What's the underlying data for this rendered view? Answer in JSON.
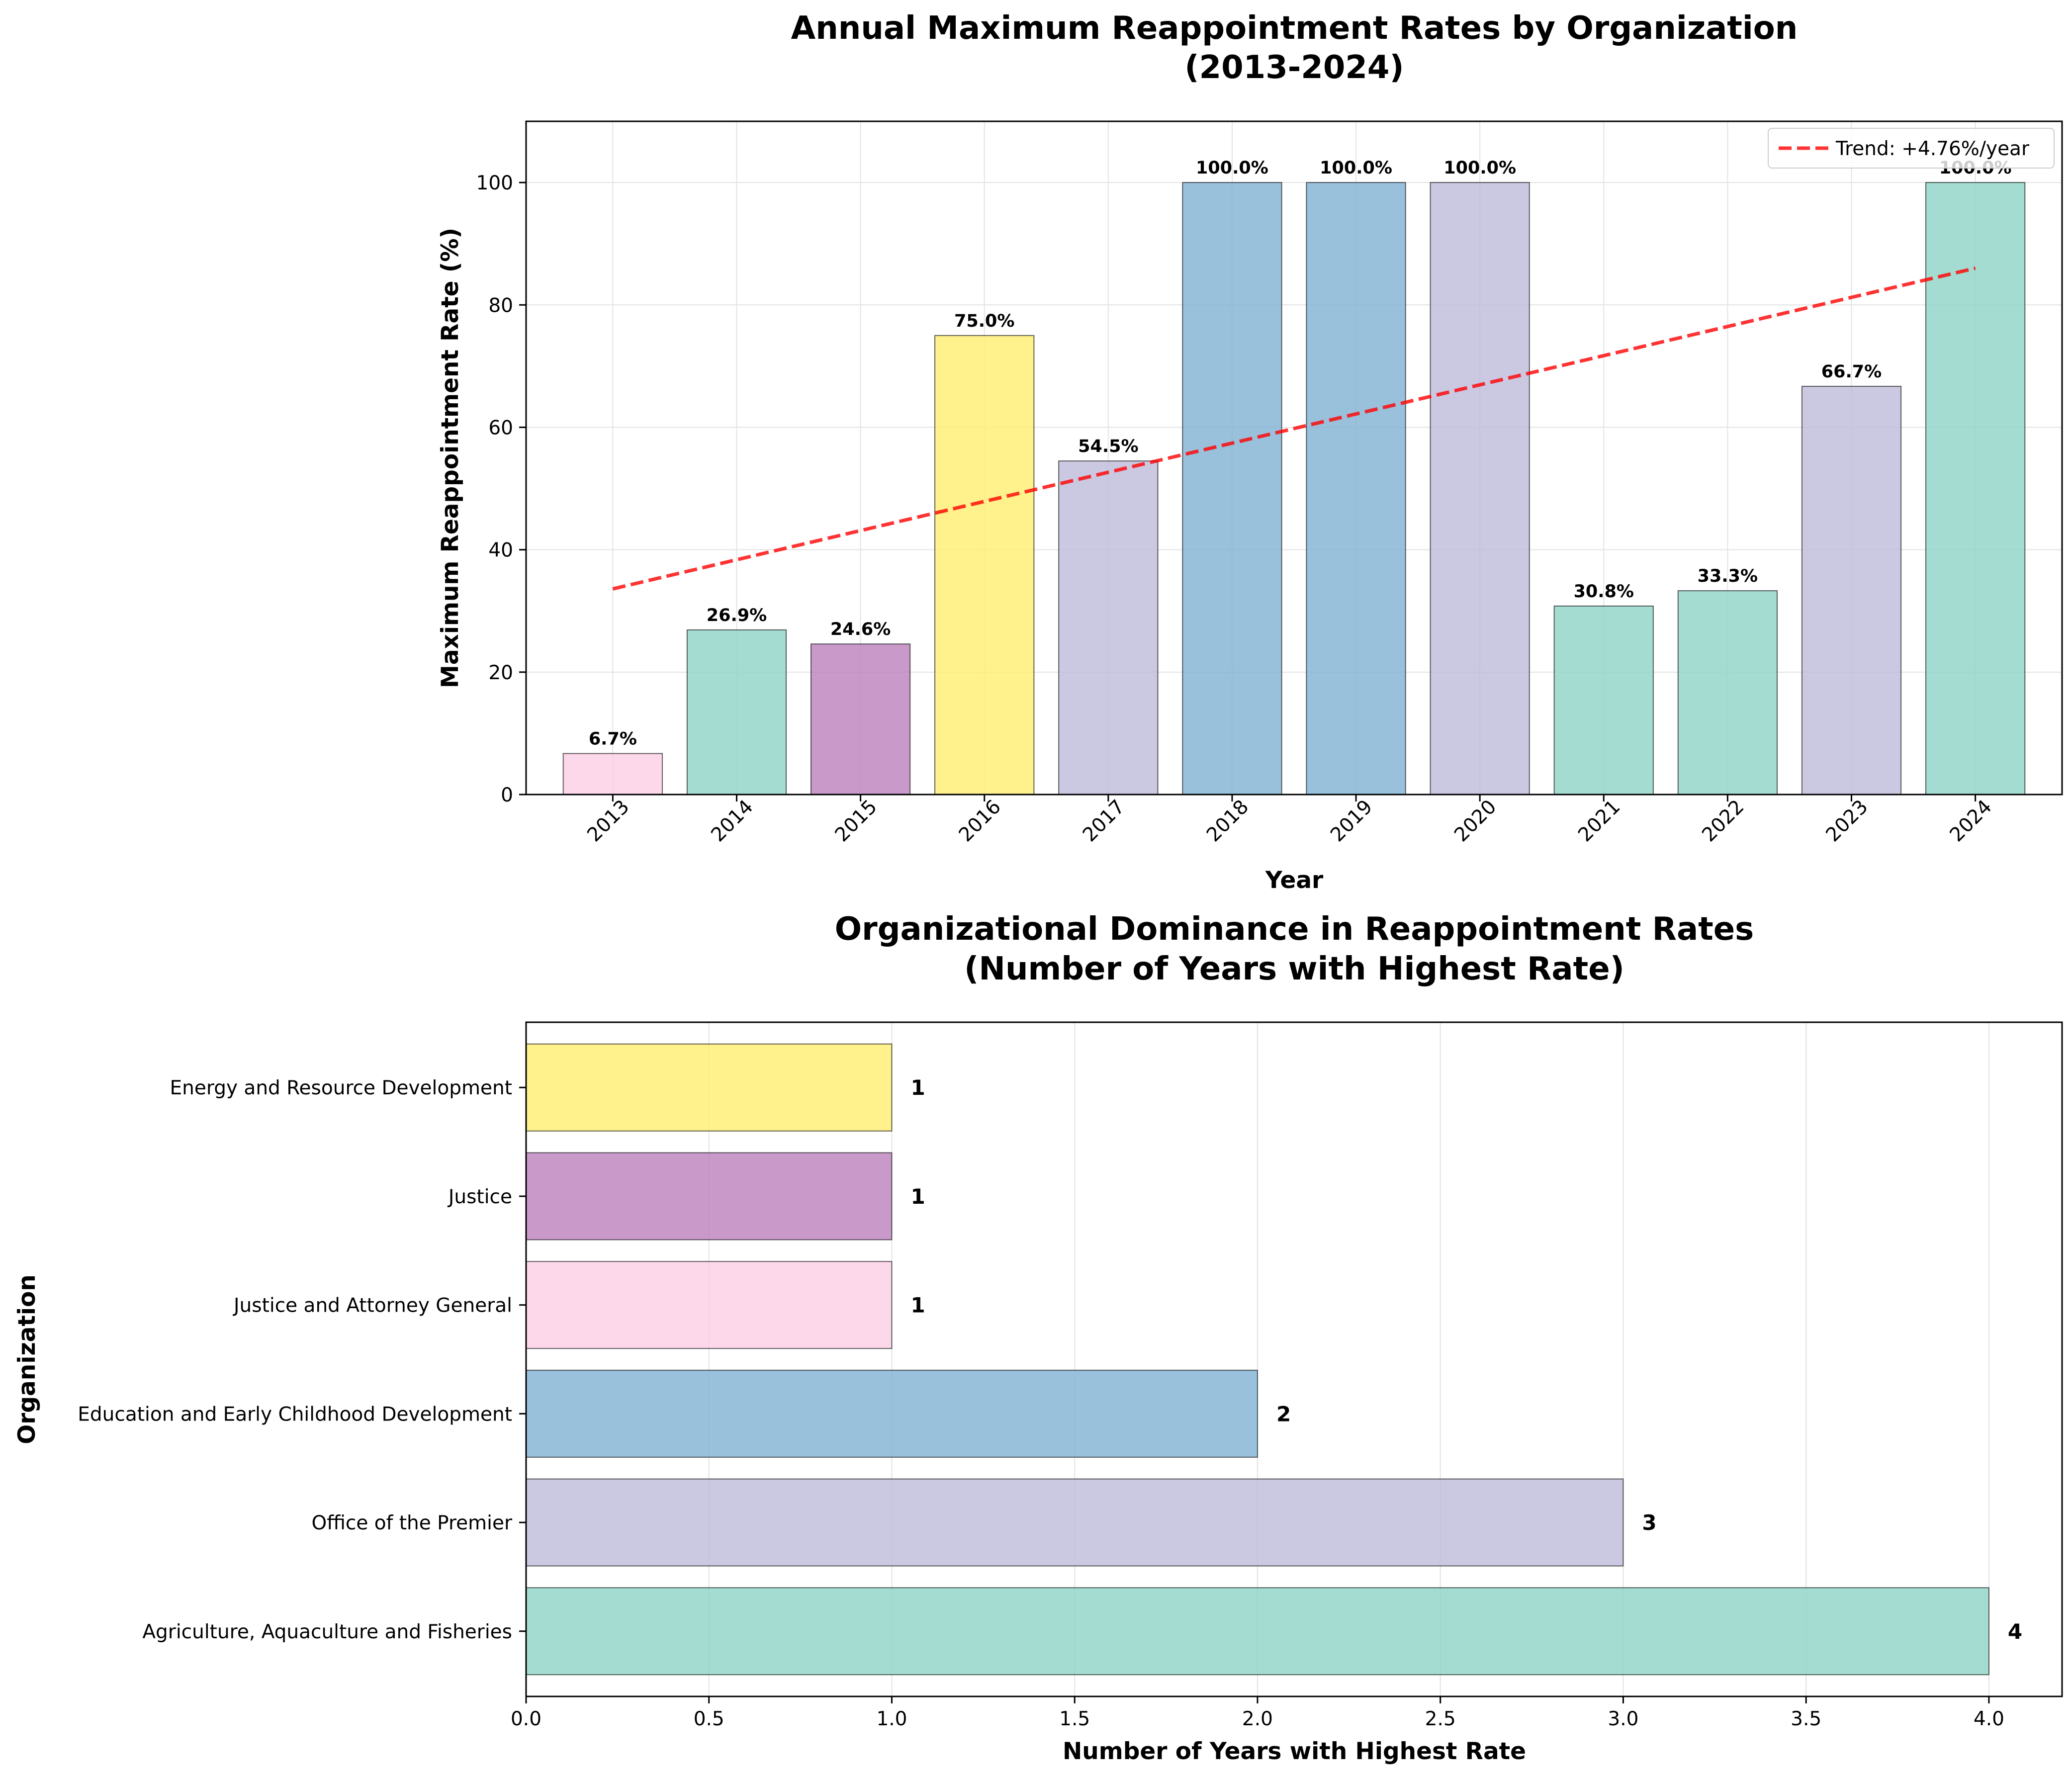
{
  "chart_data": [
    {
      "type": "bar",
      "title_lines": [
        "Annual Maximum Reappointment Rates by Organization",
        "(2013-2024)"
      ],
      "xlabel": "Year",
      "ylabel": "Maximum Reappointment Rate (%)",
      "ylim": [
        0,
        110
      ],
      "yticks": [
        0,
        20,
        40,
        60,
        80,
        100
      ],
      "grid": true,
      "legend_position": "top-right",
      "categories": [
        "2013",
        "2014",
        "2015",
        "2016",
        "2017",
        "2018",
        "2019",
        "2020",
        "2021",
        "2022",
        "2023",
        "2024"
      ],
      "values": [
        6.7,
        26.9,
        24.6,
        75.0,
        54.5,
        100.0,
        100.0,
        100.0,
        30.8,
        33.3,
        66.7,
        100.0
      ],
      "value_labels": [
        "6.7%",
        "26.9%",
        "24.6%",
        "75.0%",
        "54.5%",
        "100.0%",
        "100.0%",
        "100.0%",
        "30.8%",
        "33.3%",
        "66.7%",
        "100.0%"
      ],
      "colors": [
        "#fccde5",
        "#8dd3c7",
        "#bc80bd",
        "#ffed6f",
        "#bebada",
        "#80b1d3",
        "#80b1d3",
        "#bebada",
        "#8dd3c7",
        "#8dd3c7",
        "#bebada",
        "#8dd3c7"
      ],
      "trend": {
        "label": "Trend: +4.76%/year",
        "start": {
          "x": "2013",
          "y": 33.6
        },
        "end": {
          "x": "2024",
          "y": 86.0
        },
        "color": "#ff0000"
      }
    },
    {
      "type": "bar",
      "orientation": "horizontal",
      "title_lines": [
        "Organizational Dominance in Reappointment Rates",
        "(Number of Years with Highest Rate)"
      ],
      "xlabel": "Number of Years with Highest Rate",
      "ylabel": "Organization",
      "xlim": [
        0,
        4.2
      ],
      "xticks": [
        0.0,
        0.5,
        1.0,
        1.5,
        2.0,
        2.5,
        3.0,
        3.5,
        4.0
      ],
      "xtick_labels": [
        "0.0",
        "0.5",
        "1.0",
        "1.5",
        "2.0",
        "2.5",
        "3.0",
        "3.5",
        "4.0"
      ],
      "grid": true,
      "categories": [
        "Energy and Resource Development",
        "Justice",
        "Justice and Attorney General",
        "Education and Early Childhood Development",
        "Office of the Premier",
        "Agriculture, Aquaculture and Fisheries"
      ],
      "values": [
        1,
        1,
        1,
        2,
        3,
        4
      ],
      "value_labels": [
        "1",
        "1",
        "1",
        "2",
        "3",
        "4"
      ],
      "colors": [
        "#ffed6f",
        "#bc80bd",
        "#fccde5",
        "#80b1d3",
        "#bebada",
        "#8dd3c7"
      ]
    }
  ]
}
